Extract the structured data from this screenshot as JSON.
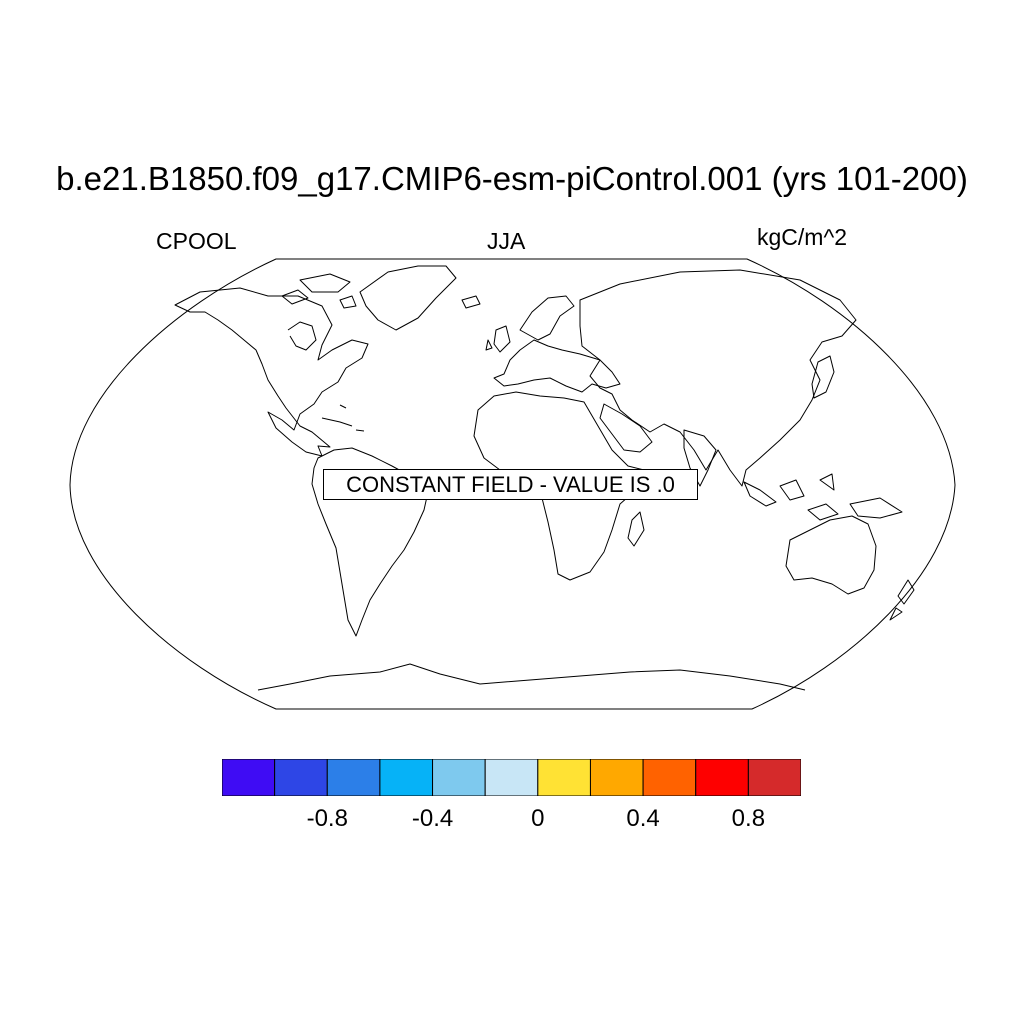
{
  "title": "b.e21.B1850.f09_g17.CMIP6-esm-piControl.001 (yrs 101-200)",
  "left_label": "CPOOL",
  "center_label": "JJA",
  "right_label": "kgC/m^2",
  "map": {
    "projection": "robinson",
    "center_longitude": 0,
    "coastlines": true
  },
  "constant_field_message": "CONSTANT FIELD - VALUE IS .0",
  "colorbar": {
    "colors": [
      "#3f0cf4",
      "#2e46e6",
      "#2c7fe8",
      "#06b2f7",
      "#7ec9ee",
      "#c8e6f6",
      "#ffe234",
      "#ffa800",
      "#ff6200",
      "#fe0000",
      "#d52a2b"
    ],
    "boundaries": [
      -1.0,
      -0.8,
      -0.6,
      -0.4,
      -0.2,
      0,
      0.2,
      0.4,
      0.6,
      0.8
    ],
    "tick_labels": [
      "-0.8",
      "-0.4",
      "0",
      "0.4",
      "0.8"
    ]
  }
}
